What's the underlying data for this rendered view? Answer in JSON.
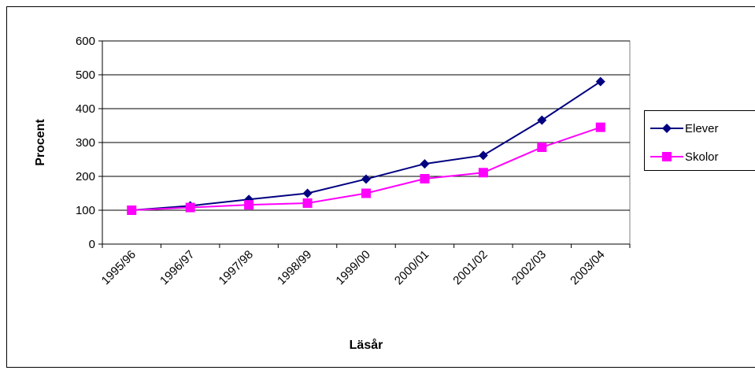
{
  "chart_data": {
    "type": "line",
    "x_label": "Läsår",
    "y_label": "Procent",
    "categories": [
      "1995/96",
      "1996/97",
      "1997/98",
      "1998/99",
      "1999/00",
      "2000/01",
      "2001/02",
      "2002/03",
      "2003/04"
    ],
    "series": [
      {
        "name": "Elever",
        "color": "#000080",
        "marker": "diamond",
        "values": [
          100,
          113,
          132,
          150,
          192,
          237,
          262,
          366,
          480
        ]
      },
      {
        "name": "Skolor",
        "color": "#ff00ff",
        "marker": "square",
        "values": [
          100,
          108,
          116,
          121,
          150,
          193,
          211,
          286,
          345
        ]
      }
    ],
    "ylim": [
      0,
      600
    ],
    "yticks": [
      0,
      100,
      200,
      300,
      400,
      500,
      600
    ],
    "grid": true
  }
}
